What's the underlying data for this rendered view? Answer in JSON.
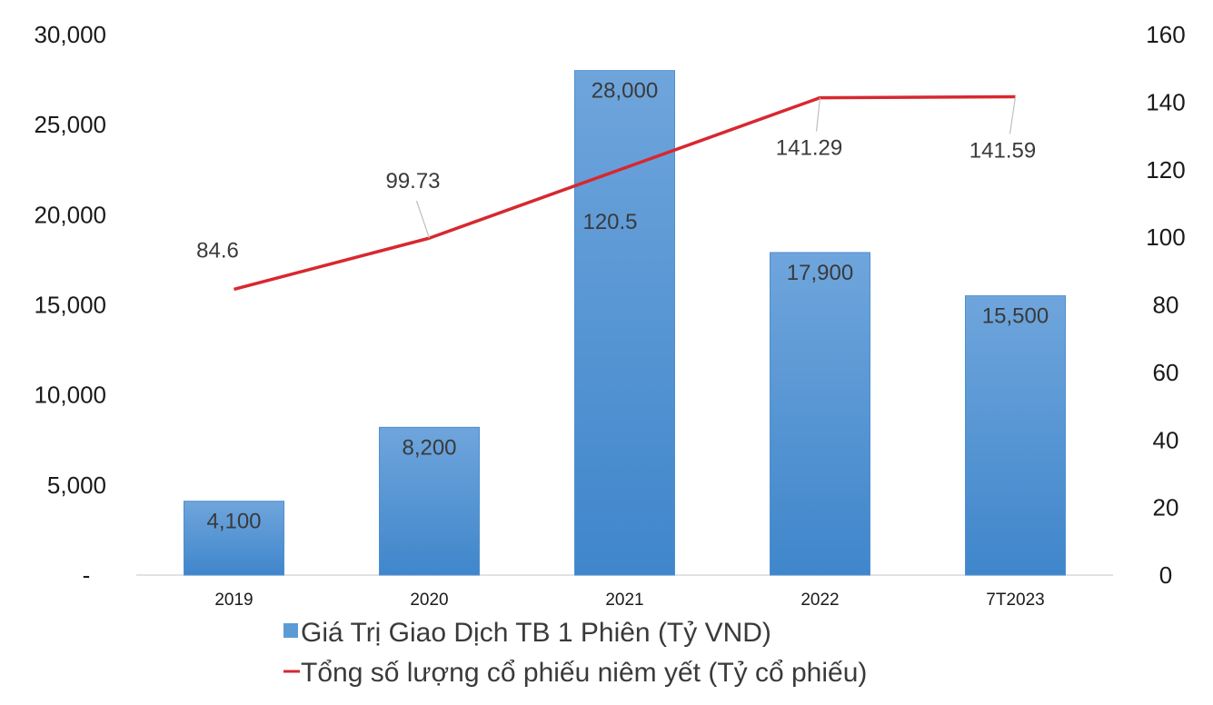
{
  "chart_data": {
    "type": "bar",
    "categories": [
      "2019",
      "2020",
      "2021",
      "2022",
      "7T2023"
    ],
    "series": [
      {
        "name": "Giá Trị Giao Dịch TB 1 Phiên (Tỷ VND)",
        "type": "bar",
        "axis": "left",
        "values": [
          4100,
          8200,
          28000,
          17900,
          15500
        ],
        "labels": [
          "4,100",
          "8,200",
          "28,000",
          "17,900",
          "15,500"
        ],
        "color": "#5B9BD5"
      },
      {
        "name": "Tổng số lượng cổ phiếu niêm yết (Tỷ cổ phiếu)",
        "type": "line",
        "axis": "right",
        "values": [
          84.6,
          99.73,
          120.5,
          141.29,
          141.59
        ],
        "labels": [
          "84.6",
          "99.73",
          "120.5",
          "141.29",
          "141.59"
        ],
        "color": "#D7282F"
      }
    ],
    "y_left": {
      "ylim": [
        0,
        30000
      ],
      "ticks": [
        0,
        5000,
        10000,
        15000,
        20000,
        25000,
        30000
      ],
      "tick_labels": [
        "-",
        "5,000",
        "10,000",
        "15,000",
        "20,000",
        "25,000",
        "30,000"
      ]
    },
    "y_right": {
      "ylim": [
        0,
        160
      ],
      "ticks": [
        0,
        20,
        40,
        60,
        80,
        100,
        120,
        140,
        160
      ],
      "tick_labels": [
        "0",
        "20",
        "40",
        "60",
        "80",
        "100",
        "120",
        "140",
        "160"
      ]
    },
    "grid": false,
    "legend": {
      "placement": "bottom",
      "entries": [
        {
          "label": "Giá Trị Giao Dịch TB 1 Phiên (Tỷ VND)",
          "marker": "square"
        },
        {
          "label": "Tổng số lượng cổ phiếu niêm yết (Tỷ cổ phiếu)",
          "marker": "line"
        }
      ]
    }
  }
}
